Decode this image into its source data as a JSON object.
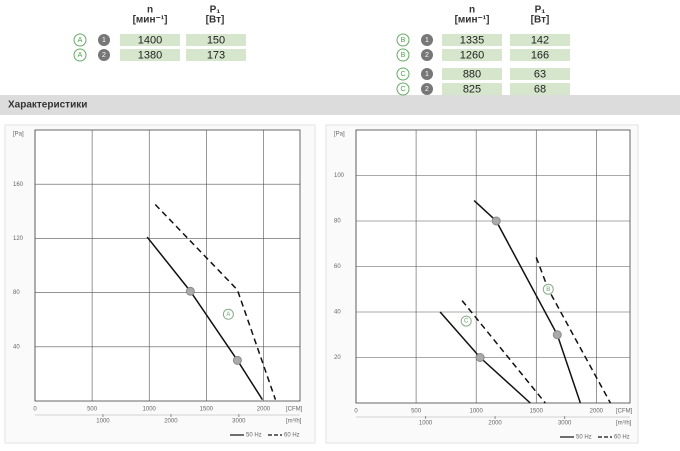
{
  "tables": [
    {
      "headers": [
        [
          "n",
          "[мин⁻¹]"
        ],
        [
          "P₁",
          "[Вт]"
        ]
      ],
      "rows": [
        [
          "A",
          "1",
          "1400",
          "150"
        ],
        [
          "A",
          "2",
          "1380",
          "173"
        ]
      ]
    },
    {
      "headers": [
        [
          "n",
          "[мин⁻¹]"
        ],
        [
          "P₁",
          "[Вт]"
        ]
      ],
      "rows": [
        [
          "B",
          "1",
          "1335",
          "142"
        ],
        [
          "B",
          "2",
          "1260",
          "166"
        ],
        [
          "C",
          "1",
          "880",
          "63"
        ],
        [
          "C",
          "2",
          "825",
          "68"
        ]
      ]
    }
  ],
  "section": {
    "title": "Характеристики"
  },
  "chart_data": [
    {
      "type": "line",
      "y_label": "[Pa]",
      "x_label": "[CFM]",
      "x2_label": "[m³/h]",
      "xlim": [
        0,
        2320
      ],
      "xticks": [
        0,
        500,
        1000,
        1500,
        2000
      ],
      "x2lim": [
        0,
        3900
      ],
      "x2ticks": [
        1000,
        2000,
        3000
      ],
      "ylim": [
        0,
        200
      ],
      "yticks": [
        40,
        80,
        120,
        160
      ],
      "grid": true,
      "series": [
        {
          "curve": "A",
          "dash": false,
          "marker": true,
          "color": "#111",
          "x": [
            982,
            1360,
            1772,
            1991
          ],
          "values": [
            121,
            81,
            30,
            1
          ]
        },
        {
          "curve": "A",
          "dash": true,
          "marker": false,
          "color": "#111",
          "x": [
            1053,
            1772,
            2105
          ],
          "values": [
            145,
            82,
            1
          ]
        }
      ],
      "annotations": [
        {
          "text": "A",
          "x": 1693,
          "y": 64
        }
      ],
      "legend": [
        {
          "name": "50 Hz",
          "dash": false
        },
        {
          "name": "60 Hz",
          "dash": true
        }
      ]
    },
    {
      "type": "line",
      "y_label": "[Pa]",
      "x_label": "[CFM]",
      "x2_label": "[m³/h]",
      "xlim": [
        0,
        2280
      ],
      "xticks": [
        0,
        500,
        1000,
        1500,
        2000
      ],
      "x2lim": [
        0,
        3940
      ],
      "x2ticks": [
        1000,
        2000,
        3000
      ],
      "ylim": [
        0,
        120
      ],
      "yticks": [
        20,
        40,
        60,
        80,
        100
      ],
      "grid": true,
      "series": [
        {
          "curve": "B",
          "dash": false,
          "marker": true,
          "color": "#111",
          "x": [
            983,
            1167,
            1675,
            1867
          ],
          "values": [
            89,
            80,
            30,
            0
          ]
        },
        {
          "curve": "B",
          "dash": true,
          "marker": false,
          "color": "#111",
          "x": [
            1500,
            1600,
            2117
          ],
          "values": [
            64,
            50,
            0
          ]
        },
        {
          "curve": "C",
          "dash": false,
          "marker": true,
          "color": "#111",
          "x": [
            700,
            1033,
            1450
          ],
          "values": [
            40,
            20,
            0
          ]
        },
        {
          "curve": "C",
          "dash": true,
          "marker": false,
          "color": "#111",
          "x": [
            883,
            1575
          ],
          "values": [
            45,
            0
          ]
        }
      ],
      "annotations": [
        {
          "text": "B",
          "x": 1600,
          "y": 50
        },
        {
          "text": "C",
          "x": 917,
          "y": 36
        }
      ],
      "legend": [
        {
          "name": "50 Hz",
          "dash": false
        },
        {
          "name": "60 Hz",
          "dash": true
        }
      ]
    }
  ]
}
